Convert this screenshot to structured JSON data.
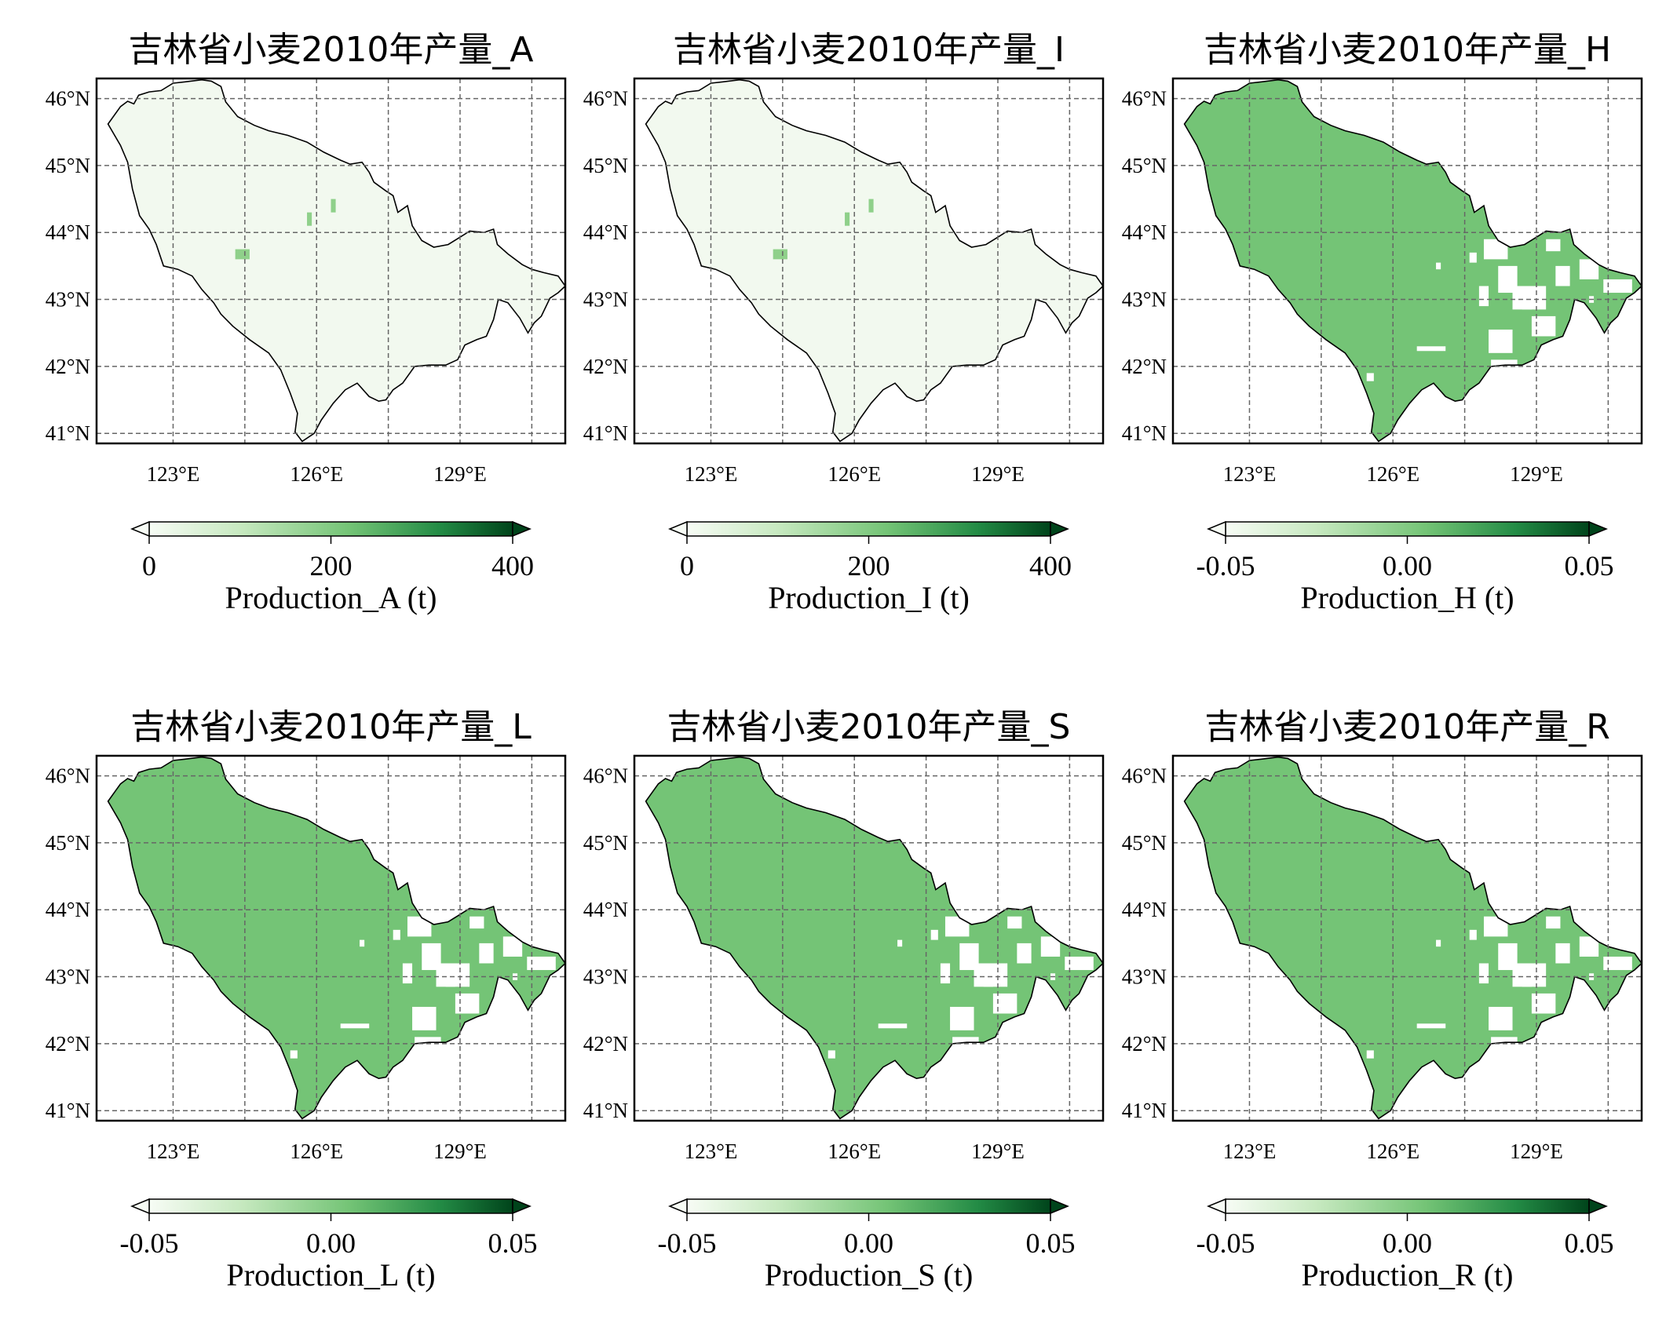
{
  "panels": [
    {
      "title": "吉林省小麦2010年产量_A",
      "colorbar_label": "Production_A (t)",
      "colorbar_ticks": [
        "0",
        "200",
        "400"
      ],
      "fill": "near-zero"
    },
    {
      "title": "吉林省小麦2010年产量_I",
      "colorbar_label": "Production_I (t)",
      "colorbar_ticks": [
        "0",
        "200",
        "400"
      ],
      "fill": "near-zero"
    },
    {
      "title": "吉林省小麦2010年产量_H",
      "colorbar_label": "Production_H (t)",
      "colorbar_ticks": [
        "-0.05",
        "0.00",
        "0.05"
      ],
      "fill": "zero-with-gaps"
    },
    {
      "title": "吉林省小麦2010年产量_L",
      "colorbar_label": "Production_L (t)",
      "colorbar_ticks": [
        "-0.05",
        "0.00",
        "0.05"
      ],
      "fill": "zero-with-gaps"
    },
    {
      "title": "吉林省小麦2010年产量_S",
      "colorbar_label": "Production_S (t)",
      "colorbar_ticks": [
        "-0.05",
        "0.00",
        "0.05"
      ],
      "fill": "zero-with-gaps"
    },
    {
      "title": "吉林省小麦2010年产量_R",
      "colorbar_label": "Production_R (t)",
      "colorbar_ticks": [
        "-0.05",
        "0.00",
        "0.05"
      ],
      "fill": "zero-with-gaps"
    }
  ],
  "axes": {
    "lon_ticks": [
      "123°E",
      "126°E",
      "129°E"
    ],
    "lat_ticks": [
      "46°N",
      "45°N",
      "44°N",
      "43°N",
      "42°N",
      "41°N"
    ],
    "lon_range": [
      121.4,
      131.2
    ],
    "lat_range": [
      40.85,
      46.3
    ],
    "grid": "dashed"
  },
  "colors": {
    "cmap": [
      "#f7fcf5",
      "#c7e9c0",
      "#74c476",
      "#238b45",
      "#00441b"
    ],
    "zero_fill": "#74c476",
    "near_zero_fill": "#f2f9ef",
    "hotspot": "#8fd08a"
  }
}
